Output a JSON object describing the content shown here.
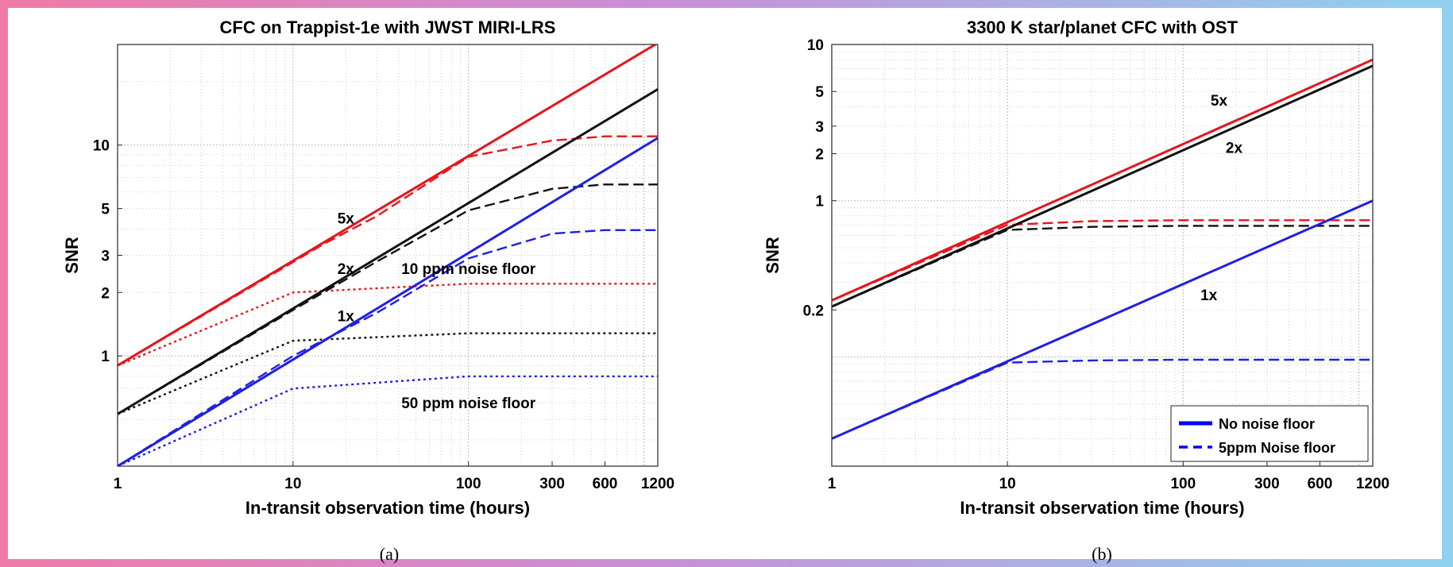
{
  "chart_data": [
    {
      "type": "line",
      "title": "CFC on Trappist-1e  with JWST MIRI-LRS",
      "xlabel": "In-transit observation time (hours)",
      "ylabel": "SNR",
      "caption": "(a)",
      "xscale": "log",
      "yscale": "log",
      "xlim": [
        1,
        1200
      ],
      "ylim": [
        0.3,
        30
      ],
      "xticks": [
        1,
        10,
        100,
        300,
        600,
        1200
      ],
      "xtick_labels": [
        "1",
        "10",
        "100",
        "300",
        "600",
        "1200"
      ],
      "yticks": [
        1,
        2,
        3,
        5,
        10
      ],
      "ytick_labels": [
        "1",
        "2",
        "3",
        "5",
        "10"
      ],
      "grid": true,
      "annotations": [
        {
          "text": "5x",
          "x": 20,
          "y": 4.5
        },
        {
          "text": "2x",
          "x": 20,
          "y": 2.6
        },
        {
          "text": "1x",
          "x": 20,
          "y": 1.55
        },
        {
          "text": "10 ppm noise floor",
          "x": 100,
          "y": 2.6
        },
        {
          "text": "50 ppm noise floor",
          "x": 100,
          "y": 0.6
        }
      ],
      "series": [
        {
          "color": "#e8141b",
          "style": "solid",
          "x": [
            1,
            1200
          ],
          "y": [
            0.9,
            30.5
          ]
        },
        {
          "color": "#e8141b",
          "style": "dashed",
          "x": [
            1,
            15,
            30,
            100,
            300,
            600,
            1200
          ],
          "y": [
            0.9,
            3.4,
            4.6,
            8.8,
            10.5,
            11.0,
            11.0
          ]
        },
        {
          "color": "#e8141b",
          "style": "dotted",
          "x": [
            1,
            10,
            100,
            300,
            600,
            1200
          ],
          "y": [
            0.9,
            2.0,
            2.2,
            2.2,
            2.2,
            2.2
          ]
        },
        {
          "color": "#111111",
          "style": "solid",
          "x": [
            1,
            1200
          ],
          "y": [
            0.53,
            18.4
          ]
        },
        {
          "color": "#111111",
          "style": "dashed",
          "x": [
            1,
            10,
            30,
            100,
            300,
            600,
            1200
          ],
          "y": [
            0.53,
            1.65,
            2.8,
            4.9,
            6.2,
            6.5,
            6.5
          ]
        },
        {
          "color": "#111111",
          "style": "dotted",
          "x": [
            1,
            10,
            100,
            300,
            600,
            1200
          ],
          "y": [
            0.53,
            1.18,
            1.28,
            1.28,
            1.28,
            1.28
          ]
        },
        {
          "color": "#1f1fe6",
          "style": "solid",
          "x": [
            1,
            1200
          ],
          "y": [
            0.3,
            10.8
          ]
        },
        {
          "color": "#1f1fe6",
          "style": "dashed",
          "x": [
            1,
            10,
            30,
            100,
            300,
            600,
            1200
          ],
          "y": [
            0.3,
            1.0,
            1.6,
            2.9,
            3.8,
            3.95,
            3.95
          ]
        },
        {
          "color": "#1f1fe6",
          "style": "dotted",
          "x": [
            1,
            10,
            100,
            300,
            600,
            1200
          ],
          "y": [
            0.3,
            0.7,
            0.8,
            0.8,
            0.8,
            0.8
          ]
        }
      ]
    },
    {
      "type": "line",
      "title": "3300 K star/planet CFC with OST",
      "xlabel": "In-transit observation time (hours)",
      "ylabel": "SNR",
      "caption": "(b)",
      "xscale": "log",
      "yscale": "log",
      "xlim": [
        1,
        1200
      ],
      "ylim": [
        0.02,
        10
      ],
      "xticks": [
        1,
        10,
        100,
        300,
        600,
        1200
      ],
      "xtick_labels": [
        "1",
        "10",
        "100",
        "300",
        "600",
        "1200"
      ],
      "yticks": [
        0.2,
        1,
        2,
        3,
        5,
        10
      ],
      "ytick_labels": [
        "0.2",
        "1",
        "2",
        "3",
        "5",
        "10"
      ],
      "grid": true,
      "legend": {
        "position": "bottom-right",
        "entries": [
          {
            "label": "No noise floor",
            "style": "solid",
            "color": "#0000ff"
          },
          {
            "label": "5ppm Noise floor",
            "style": "dashed",
            "color": "#0000ff"
          }
        ]
      },
      "annotations": [
        {
          "text": "5x",
          "x": 160,
          "y": 4.4
        },
        {
          "text": "2x",
          "x": 195,
          "y": 2.2
        },
        {
          "text": "1x",
          "x": 140,
          "y": 0.25
        }
      ],
      "series": [
        {
          "color": "#e8141b",
          "style": "solid",
          "x": [
            1,
            1200
          ],
          "y": [
            0.23,
            8.0
          ]
        },
        {
          "color": "#e8141b",
          "style": "dashed",
          "x": [
            1,
            10,
            30,
            100,
            300,
            600,
            1200
          ],
          "y": [
            0.23,
            0.7,
            0.74,
            0.75,
            0.75,
            0.75,
            0.75
          ]
        },
        {
          "color": "#111111",
          "style": "solid",
          "x": [
            1,
            1200
          ],
          "y": [
            0.21,
            7.3
          ]
        },
        {
          "color": "#111111",
          "style": "dashed",
          "x": [
            1,
            10,
            30,
            100,
            300,
            600,
            1200
          ],
          "y": [
            0.21,
            0.65,
            0.68,
            0.69,
            0.69,
            0.69,
            0.69
          ]
        },
        {
          "color": "#1f1fe6",
          "style": "solid",
          "x": [
            1,
            1200
          ],
          "y": [
            0.03,
            1.0
          ]
        },
        {
          "color": "#1f1fe6",
          "style": "dashed",
          "x": [
            1,
            10,
            30,
            100,
            300,
            600,
            1200
          ],
          "y": [
            0.03,
            0.092,
            0.095,
            0.096,
            0.096,
            0.096,
            0.096
          ]
        }
      ]
    }
  ]
}
